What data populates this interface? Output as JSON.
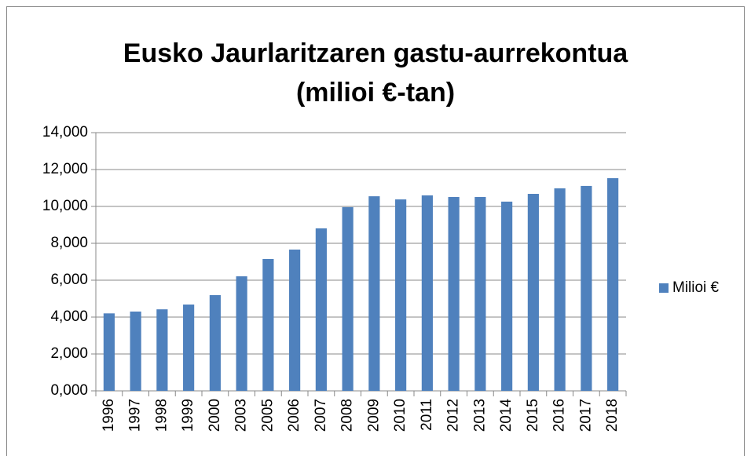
{
  "chart_data": {
    "type": "bar",
    "title": [
      "Eusko Jaurlaritzaren gastu-aurrekontua",
      "(milioi €-tan)"
    ],
    "categories": [
      "1996",
      "1997",
      "1998",
      "1999",
      "2000",
      "2003",
      "2005",
      "2006",
      "2007",
      "2008",
      "2009",
      "2010",
      "2011",
      "2012",
      "2013",
      "2014",
      "2015",
      "2016",
      "2017",
      "2018"
    ],
    "series": [
      {
        "name": "Milioi €",
        "color": "#4f81bd",
        "values": [
          4200,
          4300,
          4420,
          4680,
          5190,
          6210,
          7150,
          7660,
          8810,
          9960,
          10550,
          10380,
          10600,
          10510,
          10510,
          10260,
          10680,
          10980,
          11110,
          11530
        ]
      }
    ],
    "ylim": [
      0,
      14000
    ],
    "yticks": [
      {
        "value": 0,
        "label": "0,000"
      },
      {
        "value": 2000,
        "label": "2,000"
      },
      {
        "value": 4000,
        "label": "4,000"
      },
      {
        "value": 6000,
        "label": "6,000"
      },
      {
        "value": 8000,
        "label": "8,000"
      },
      {
        "value": 10000,
        "label": "10,000"
      },
      {
        "value": 12000,
        "label": "12,000"
      },
      {
        "value": 14000,
        "label": "14,000"
      }
    ],
    "grid": true,
    "legend": "right"
  }
}
